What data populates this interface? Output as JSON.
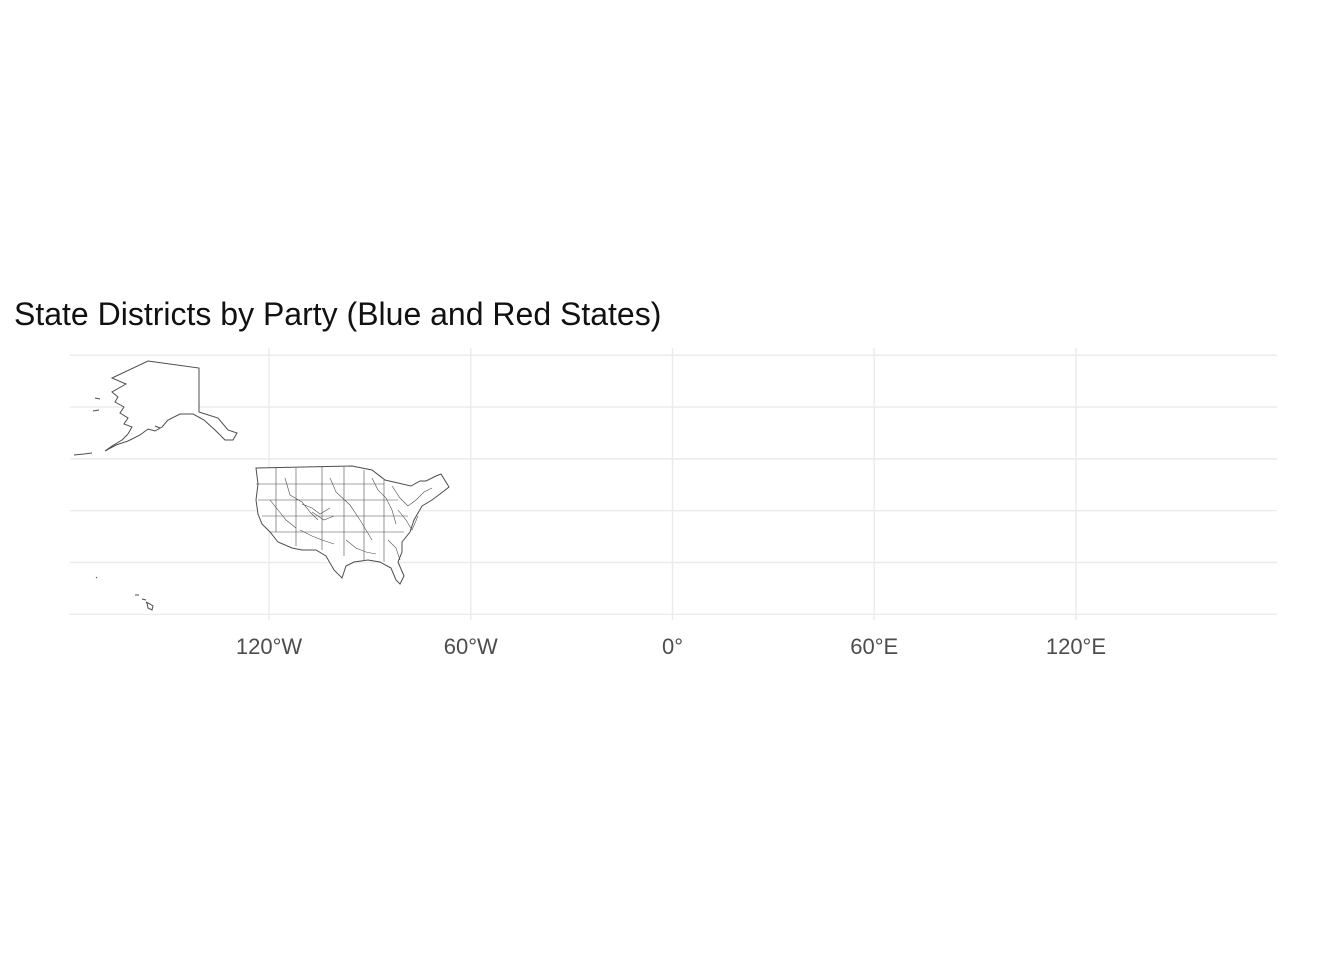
{
  "chart_data": {
    "type": "map",
    "title": "State Districts by Party (Blue and Red States)",
    "projection": "equirectangular",
    "xlim": [
      -179.2,
      179.8
    ],
    "ylim": [
      18.9,
      71.4
    ],
    "x_ticks": [
      -120,
      -60,
      0,
      60,
      120
    ],
    "x_tick_labels": [
      "120°W",
      "60°W",
      "0°",
      "60°E",
      "120°E"
    ],
    "y_gridlines": [
      20,
      30,
      40,
      50,
      60,
      70
    ],
    "grid": true,
    "fill": "#ffffff",
    "stroke": "#4d4d4d",
    "regions": [
      {
        "name": "Alaska"
      },
      {
        "name": "Hawaii"
      },
      {
        "name": "Contiguous United States"
      }
    ]
  }
}
